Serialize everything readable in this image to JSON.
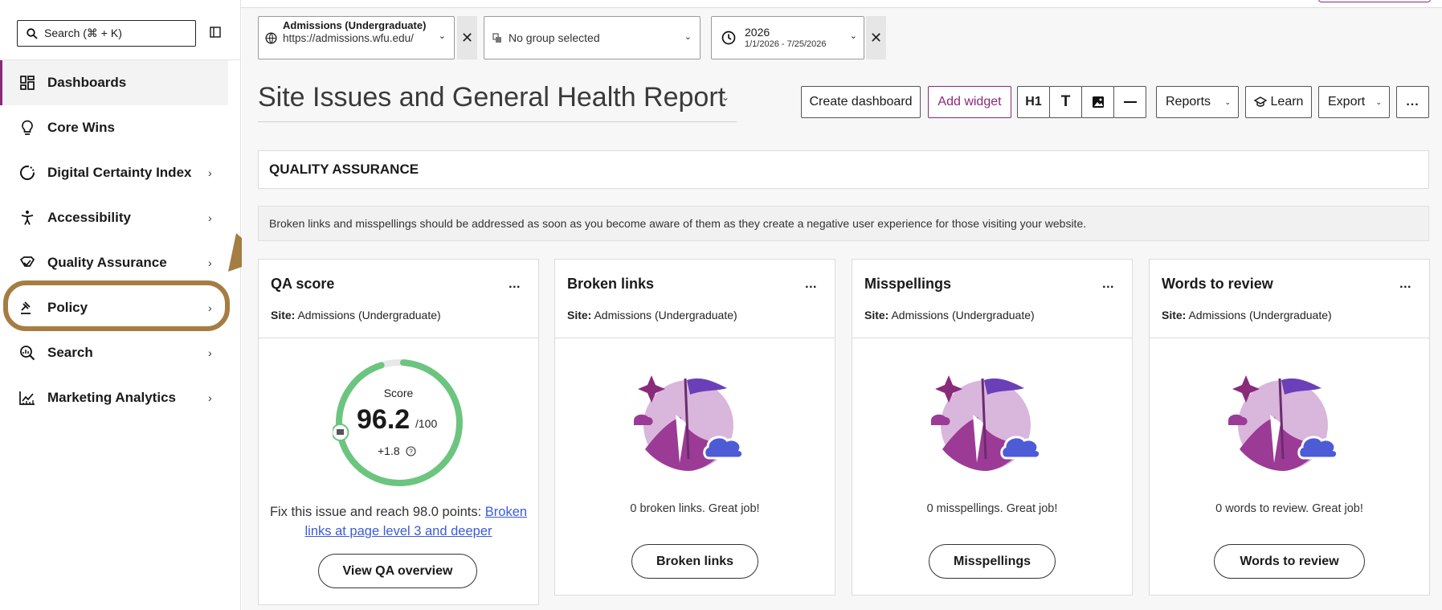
{
  "sidebar": {
    "search_label": "Search   (⌘ + K)",
    "items": [
      {
        "label": "Dashboards",
        "icon": "dashboard-icon",
        "chevron": false
      },
      {
        "label": "Core Wins",
        "icon": "lightbulb-icon",
        "chevron": false
      },
      {
        "label": "Digital Certainty Index",
        "icon": "dci-icon",
        "chevron": true
      },
      {
        "label": "Accessibility",
        "icon": "accessibility-icon",
        "chevron": true
      },
      {
        "label": "Quality Assurance",
        "icon": "qa-icon",
        "chevron": true
      },
      {
        "label": "Policy",
        "icon": "gavel-icon",
        "chevron": true
      },
      {
        "label": "Search",
        "icon": "search-analytics-icon",
        "chevron": true
      },
      {
        "label": "Marketing Analytics",
        "icon": "chart-icon",
        "chevron": true
      }
    ],
    "chevron_glyph": "›"
  },
  "filters": {
    "site_name": "Admissions (Undergraduate)",
    "site_url": "https://admissions.wfu.edu/",
    "group": "No group selected",
    "year": "2026",
    "date_range": "1/1/2026 - 7/25/2026",
    "clear_glyph": "✕",
    "dropdown_glyph": "⌄"
  },
  "report": {
    "title": "Site Issues and General Health Report"
  },
  "toolbar": {
    "create_dashboard": "Create dashboard",
    "add_widget": "Add widget",
    "h1": "H1",
    "text": "T",
    "reports": "Reports",
    "learn": "Learn",
    "export": "Export",
    "more": "..."
  },
  "section": {
    "heading": "QUALITY ASSURANCE",
    "note": "Broken links and misspellings should be addressed as soon as you become aware of them as they create a negative user experience for those visiting your website."
  },
  "cards": [
    {
      "title": "QA score",
      "site_label": "Site:",
      "site_value": "Admissions (Undergraduate)",
      "score_label": "Score",
      "score": "96.2",
      "score_max": "/100",
      "score_fraction": 0.962,
      "delta": "+1.8",
      "fix_text": "Fix this issue and reach 98.0 points:",
      "fix_link": "Broken links at page level 3 and deeper",
      "button": "View QA overview"
    },
    {
      "title": "Broken links",
      "site_label": "Site:",
      "site_value": "Admissions (Undergraduate)",
      "message": "0 broken links. Great job!",
      "button": "Broken links"
    },
    {
      "title": "Misspellings",
      "site_label": "Site:",
      "site_value": "Admissions (Undergraduate)",
      "message": "0 misspellings. Great job!",
      "button": "Misspellings"
    },
    {
      "title": "Words to review",
      "site_label": "Site:",
      "site_value": "Admissions (Undergraduate)",
      "message": "0 words to review. Great job!",
      "button": "Words to review"
    }
  ],
  "card_more": "...",
  "colors": {
    "accent": "#8a2a7a",
    "gauge_green": "#6cc57f",
    "highlight": "#a57d43",
    "link": "#3b5bdb"
  }
}
